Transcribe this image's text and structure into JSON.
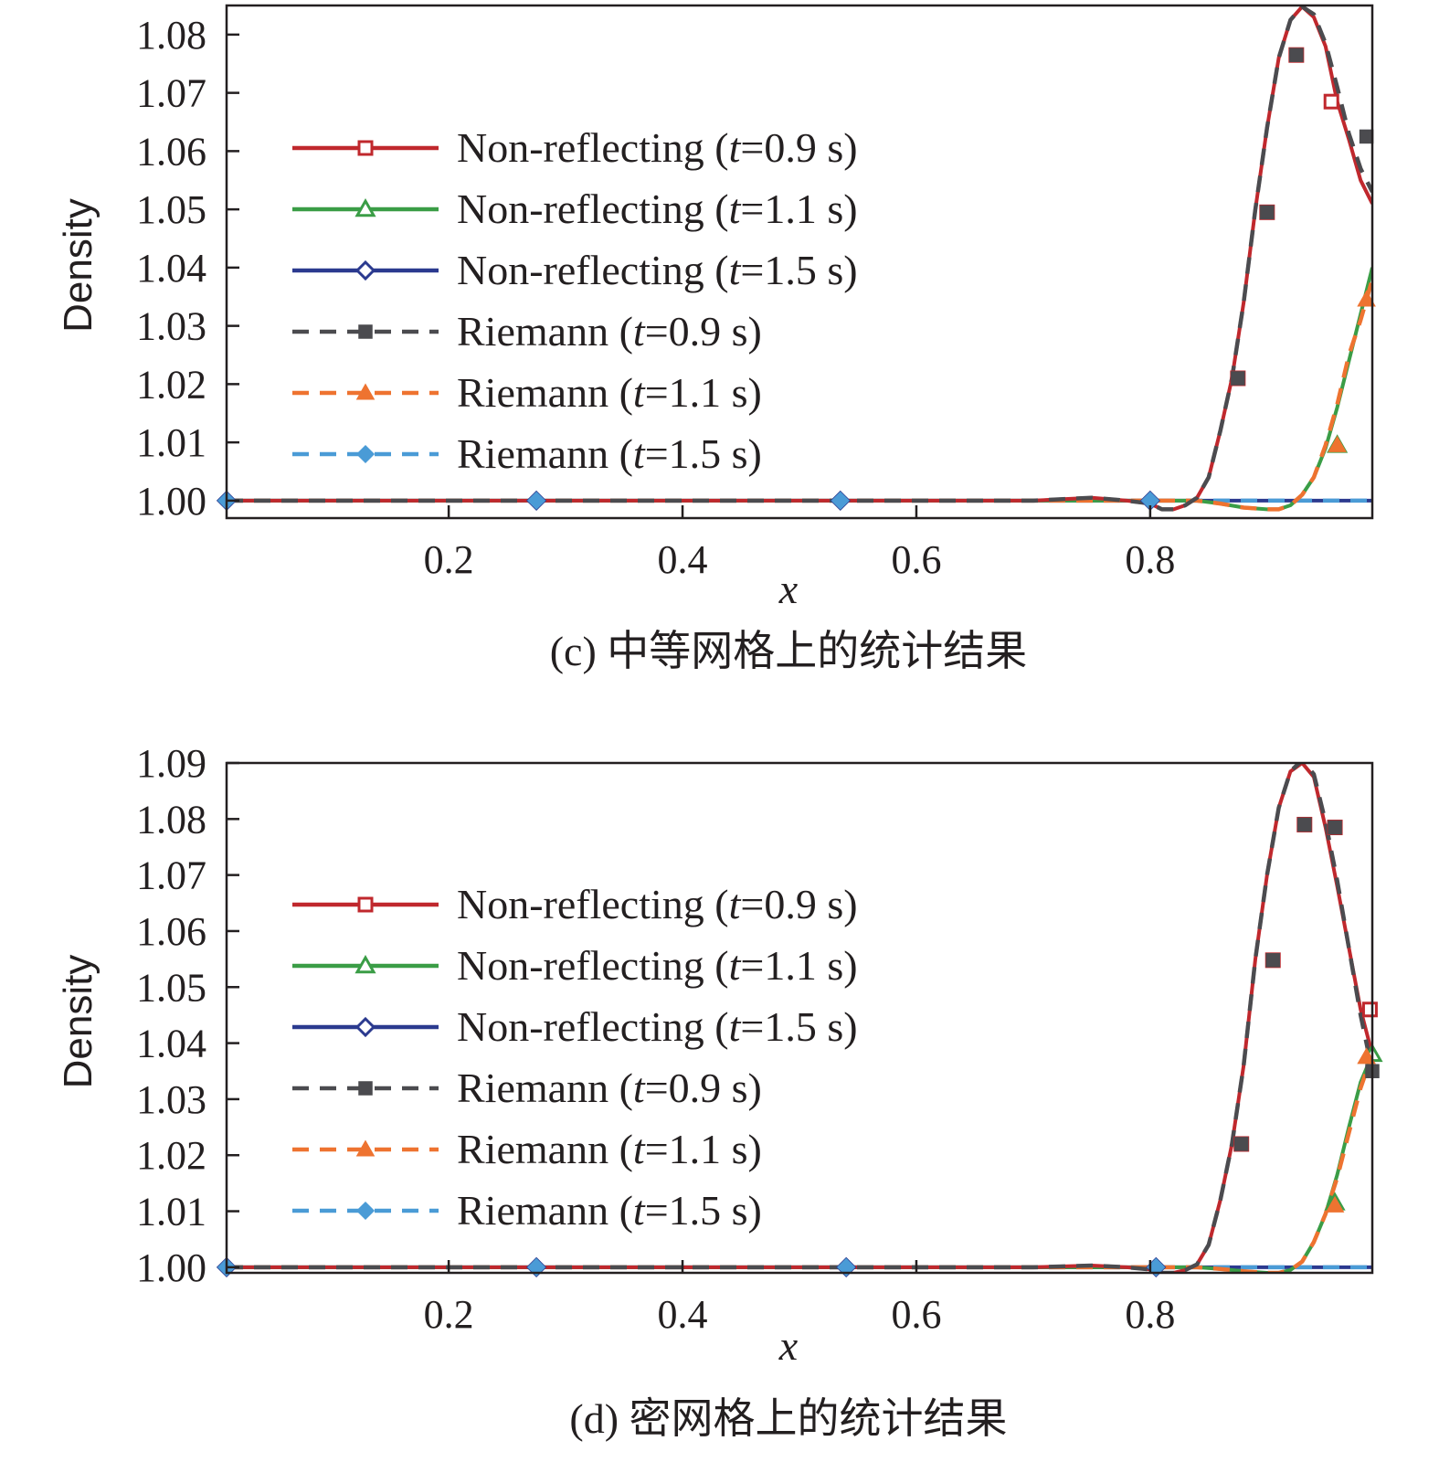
{
  "figure": {
    "colors": {
      "nr_09": "#c0282d",
      "nr_11": "#3a9d46",
      "nr_15": "#2b3a8f",
      "r_09": "#4b4b4f",
      "r_11": "#ee7330",
      "r_15": "#4a9bd6",
      "axis": "#231f20"
    },
    "legend": [
      {
        "prefix": "Non-reflecting (",
        "italic": "t",
        "suffix": "=0.9 s)",
        "series": "nr_09",
        "marker": "square-open",
        "dash": false
      },
      {
        "prefix": "Non-reflecting (",
        "italic": "t",
        "suffix": "=1.1 s)",
        "series": "nr_11",
        "marker": "triangle-open",
        "dash": false
      },
      {
        "prefix": "Non-reflecting (",
        "italic": "t",
        "suffix": "=1.5 s)",
        "series": "nr_15",
        "marker": "diamond-open",
        "dash": false
      },
      {
        "prefix": "Riemann (",
        "italic": "t",
        "suffix": "=0.9 s)",
        "series": "r_09",
        "marker": "square-filled",
        "dash": true
      },
      {
        "prefix": "Riemann (",
        "italic": "t",
        "suffix": "=1.1 s)",
        "series": "r_11",
        "marker": "triangle-filled",
        "dash": true
      },
      {
        "prefix": "Riemann (",
        "italic": "t",
        "suffix": "=1.5 s)",
        "series": "r_15",
        "marker": "diamond-filled",
        "dash": true
      }
    ]
  },
  "chart_data": [
    {
      "type": "line",
      "caption": "(c) 中等网格上的统计结果",
      "xlabel": "x",
      "ylabel": "Density",
      "xlim": [
        0.01,
        0.99
      ],
      "ylim": [
        0.997,
        1.085
      ],
      "xticks": [
        0.2,
        0.4,
        0.6,
        0.8
      ],
      "xtick_labels": [
        "0.2",
        "0.4",
        "0.6",
        "0.8"
      ],
      "yticks": [
        1.0,
        1.01,
        1.02,
        1.03,
        1.04,
        1.05,
        1.06,
        1.07,
        1.08
      ],
      "ytick_labels": [
        "1.00",
        "1.01",
        "1.02",
        "1.03",
        "1.04",
        "1.05",
        "1.06",
        "1.07",
        "1.08"
      ],
      "grid": false,
      "legend_position": "center-left",
      "series": [
        {
          "id": "nr_09",
          "name": "Non-reflecting (t=0.9 s)",
          "style": "solid",
          "x": [
            0.01,
            0.7,
            0.75,
            0.78,
            0.8,
            0.81,
            0.82,
            0.83,
            0.84,
            0.85,
            0.86,
            0.87,
            0.88,
            0.89,
            0.9,
            0.91,
            0.92,
            0.93,
            0.94,
            0.95,
            0.96,
            0.97,
            0.98,
            0.99
          ],
          "y": [
            1.0,
            1.0,
            1.0005,
            1.0,
            0.9995,
            0.9985,
            0.9985,
            0.9992,
            1.0005,
            1.004,
            1.012,
            1.021,
            1.034,
            1.05,
            1.064,
            1.076,
            1.0825,
            1.0848,
            1.083,
            1.078,
            1.0685,
            1.062,
            1.055,
            1.051
          ],
          "markers_x": [
            0.875,
            0.9,
            0.925,
            0.955
          ],
          "markers_y": [
            1.021,
            1.0495,
            1.0765,
            1.0685
          ]
        },
        {
          "id": "nr_11",
          "name": "Non-reflecting (t=1.1 s)",
          "style": "solid",
          "x": [
            0.01,
            0.84,
            0.86,
            0.88,
            0.9,
            0.91,
            0.92,
            0.93,
            0.94,
            0.95,
            0.96,
            0.97,
            0.98,
            0.99
          ],
          "y": [
            1.0,
            1.0,
            0.9995,
            0.9988,
            0.9985,
            0.9985,
            0.9992,
            1.001,
            1.004,
            1.009,
            1.016,
            1.024,
            1.032,
            1.04
          ],
          "markers_x": [
            0.96
          ],
          "markers_y": [
            1.0095
          ]
        },
        {
          "id": "nr_15",
          "name": "Non-reflecting (t=1.5 s)",
          "style": "solid",
          "x": [
            0.01,
            0.99
          ],
          "y": [
            1.0,
            1.0
          ],
          "markers_x": [
            0.01,
            0.275,
            0.535,
            0.8
          ],
          "markers_y": [
            1.0,
            1.0,
            1.0,
            1.0
          ]
        },
        {
          "id": "r_09",
          "name": "Riemann (t=0.9 s)",
          "style": "dashed",
          "x": [
            0.01,
            0.7,
            0.75,
            0.78,
            0.8,
            0.81,
            0.82,
            0.83,
            0.84,
            0.85,
            0.86,
            0.87,
            0.88,
            0.89,
            0.9,
            0.91,
            0.92,
            0.93,
            0.94,
            0.95,
            0.96,
            0.97,
            0.98,
            0.99
          ],
          "y": [
            1.0,
            1.0,
            1.0005,
            1.0,
            0.9995,
            0.9985,
            0.9985,
            0.9992,
            1.0005,
            1.004,
            1.012,
            1.021,
            1.034,
            1.05,
            1.064,
            1.076,
            1.0825,
            1.0848,
            1.0835,
            1.0785,
            1.071,
            1.063,
            1.057,
            1.053
          ],
          "markers_x": [
            0.875,
            0.9,
            0.925,
            0.985
          ],
          "markers_y": [
            1.021,
            1.0495,
            1.0765,
            1.0625
          ]
        },
        {
          "id": "r_11",
          "name": "Riemann (t=1.1 s)",
          "style": "dashed",
          "x": [
            0.01,
            0.84,
            0.86,
            0.88,
            0.9,
            0.91,
            0.92,
            0.93,
            0.94,
            0.95,
            0.96,
            0.97,
            0.98,
            0.99
          ],
          "y": [
            1.0,
            1.0,
            0.9995,
            0.9988,
            0.9985,
            0.9985,
            0.9992,
            1.001,
            1.004,
            1.0095,
            1.0165,
            1.025,
            1.031,
            1.038
          ],
          "markers_x": [
            0.96,
            0.985
          ],
          "markers_y": [
            1.0095,
            1.0345
          ]
        },
        {
          "id": "r_15",
          "name": "Riemann (t=1.5 s)",
          "style": "dashed",
          "x": [
            0.01,
            0.99
          ],
          "y": [
            1.0,
            1.0
          ],
          "markers_x": [
            0.01,
            0.275,
            0.535,
            0.8
          ],
          "markers_y": [
            1.0,
            1.0,
            1.0,
            1.0
          ]
        }
      ]
    },
    {
      "type": "line",
      "caption": "(d) 密网格上的统计结果",
      "xlabel": "x",
      "ylabel": "Density",
      "xlim": [
        0.01,
        0.99
      ],
      "ylim": [
        0.999,
        1.09
      ],
      "xticks": [
        0.2,
        0.4,
        0.6,
        0.8
      ],
      "xtick_labels": [
        "0.2",
        "0.4",
        "0.6",
        "0.8"
      ],
      "yticks": [
        1.0,
        1.01,
        1.02,
        1.03,
        1.04,
        1.05,
        1.06,
        1.07,
        1.08,
        1.09
      ],
      "ytick_labels": [
        "1.00",
        "1.01",
        "1.02",
        "1.03",
        "1.04",
        "1.05",
        "1.06",
        "1.07",
        "1.08",
        "1.09"
      ],
      "grid": false,
      "legend_position": "center-left",
      "series": [
        {
          "id": "nr_09",
          "name": "Non-reflecting (t=0.9 s)",
          "style": "solid",
          "x": [
            0.01,
            0.7,
            0.75,
            0.78,
            0.8,
            0.81,
            0.82,
            0.83,
            0.84,
            0.85,
            0.86,
            0.87,
            0.88,
            0.89,
            0.9,
            0.91,
            0.92,
            0.93,
            0.94,
            0.95,
            0.96,
            0.97,
            0.98,
            0.99
          ],
          "y": [
            1.0,
            1.0,
            1.0003,
            1.0,
            0.9996,
            0.999,
            0.999,
            0.9995,
            1.0005,
            1.004,
            1.012,
            1.022,
            1.036,
            1.055,
            1.07,
            1.082,
            1.0885,
            1.09,
            1.0875,
            1.0785,
            1.068,
            1.057,
            1.046,
            1.038
          ],
          "markers_x": [
            0.878,
            0.905,
            0.932,
            0.958,
            0.988
          ],
          "markers_y": [
            1.022,
            1.0548,
            1.079,
            1.0785,
            1.046
          ]
        },
        {
          "id": "nr_11",
          "name": "Non-reflecting (t=1.1 s)",
          "style": "solid",
          "x": [
            0.01,
            0.84,
            0.86,
            0.88,
            0.9,
            0.91,
            0.92,
            0.93,
            0.94,
            0.95,
            0.96,
            0.97,
            0.98,
            0.99
          ],
          "y": [
            1.0,
            1.0,
            0.9997,
            0.9993,
            0.999,
            0.999,
            0.9995,
            1.001,
            1.0045,
            1.0095,
            1.0165,
            1.025,
            1.033,
            1.038
          ],
          "markers_x": [
            0.958,
            0.99
          ],
          "markers_y": [
            1.0115,
            1.038
          ]
        },
        {
          "id": "nr_15",
          "name": "Non-reflecting (t=1.5 s)",
          "style": "solid",
          "x": [
            0.01,
            0.99
          ],
          "y": [
            1.0,
            1.0
          ],
          "markers_x": [
            0.01,
            0.275,
            0.54,
            0.805
          ],
          "markers_y": [
            1.0,
            1.0,
            1.0,
            1.0
          ]
        },
        {
          "id": "r_09",
          "name": "Riemann (t=0.9 s)",
          "style": "dashed",
          "x": [
            0.01,
            0.7,
            0.75,
            0.78,
            0.8,
            0.81,
            0.82,
            0.83,
            0.84,
            0.85,
            0.86,
            0.87,
            0.88,
            0.89,
            0.9,
            0.91,
            0.92,
            0.93,
            0.94,
            0.95,
            0.96,
            0.97,
            0.98,
            0.99
          ],
          "y": [
            1.0,
            1.0,
            1.0003,
            1.0,
            0.9996,
            0.999,
            0.999,
            0.9995,
            1.0005,
            1.004,
            1.012,
            1.022,
            1.036,
            1.055,
            1.07,
            1.082,
            1.0885,
            1.0905,
            1.088,
            1.0795,
            1.069,
            1.057,
            1.045,
            1.035
          ],
          "markers_x": [
            0.878,
            0.905,
            0.932,
            0.958,
            0.99
          ],
          "markers_y": [
            1.022,
            1.0548,
            1.079,
            1.0785,
            1.035
          ]
        },
        {
          "id": "r_11",
          "name": "Riemann (t=1.1 s)",
          "style": "dashed",
          "x": [
            0.01,
            0.84,
            0.86,
            0.88,
            0.9,
            0.91,
            0.92,
            0.93,
            0.94,
            0.95,
            0.96,
            0.97,
            0.98,
            0.99
          ],
          "y": [
            1.0,
            1.0,
            0.9997,
            0.9993,
            0.999,
            0.999,
            0.9995,
            1.001,
            1.0045,
            1.0095,
            1.016,
            1.024,
            1.032,
            1.038
          ],
          "markers_x": [
            0.958,
            0.985
          ],
          "markers_y": [
            1.011,
            1.0375
          ]
        },
        {
          "id": "r_15",
          "name": "Riemann (t=1.5 s)",
          "style": "dashed",
          "x": [
            0.01,
            0.99
          ],
          "y": [
            1.0,
            1.0
          ],
          "markers_x": [
            0.01,
            0.275,
            0.54,
            0.805
          ],
          "markers_y": [
            1.0,
            1.0,
            1.0,
            1.0
          ]
        }
      ]
    }
  ]
}
